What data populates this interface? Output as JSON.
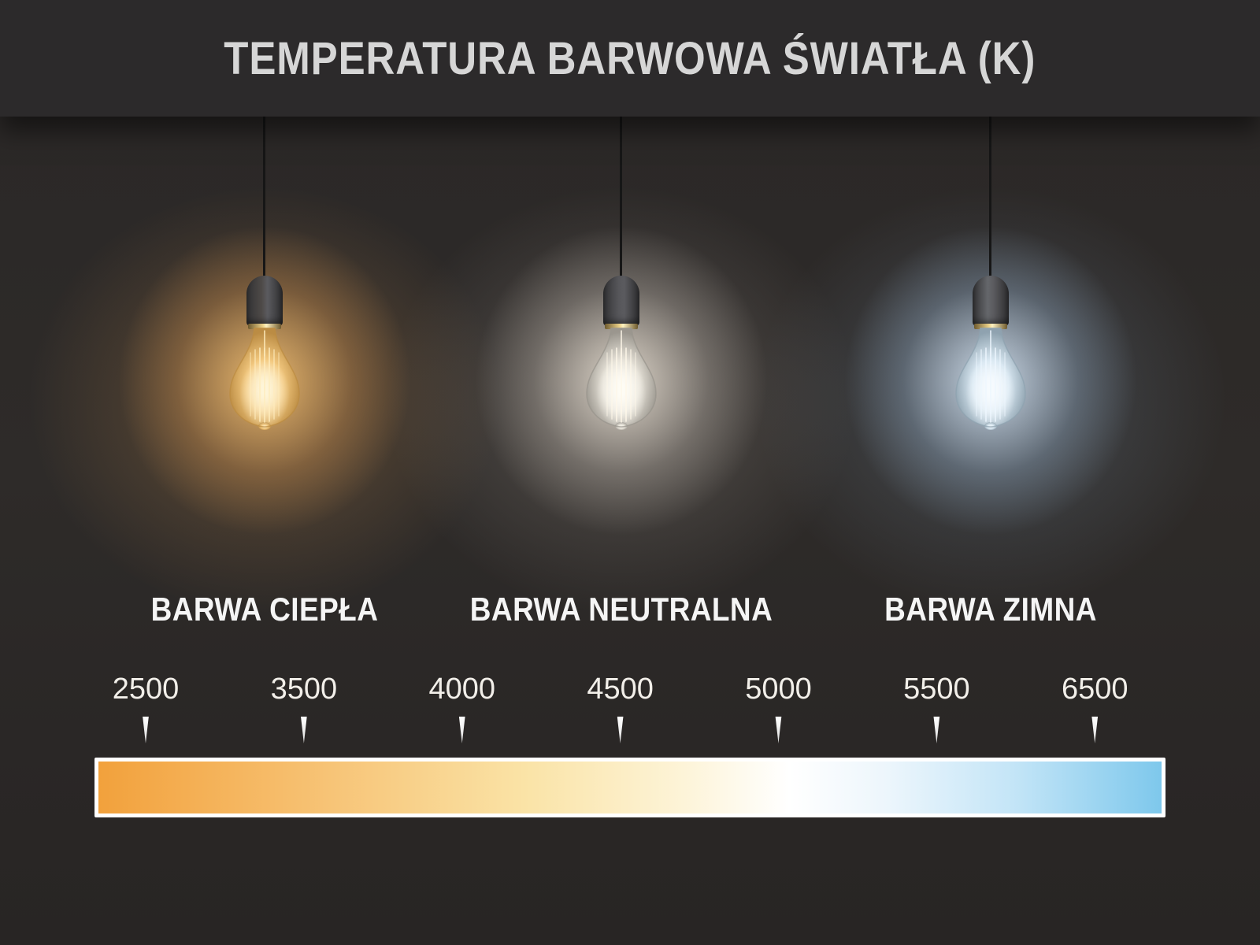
{
  "header": {
    "title": "TEMPERATURA BARWOWA ŚWIATŁA (K)"
  },
  "bulbs": [
    {
      "name": "warm",
      "label": "BARWA CIEPŁA",
      "colors": {
        "halo": "rgba(255,202,120,0.85)",
        "halo_mid": "rgba(212,150,82,0.35)",
        "glass_edge": "#bc8c42",
        "glass_mid": "#f6cc82",
        "core": "#fff7dc",
        "filament": "#ffedbe",
        "socket": "#4e4a48",
        "wall": "rgba(186,134,76,0.40)"
      }
    },
    {
      "name": "neutral",
      "label": "BARWA NEUTRALNA",
      "colors": {
        "halo": "rgba(255,246,232,0.80)",
        "halo_mid": "rgba(202,194,184,0.32)",
        "glass_edge": "#9a968e",
        "glass_mid": "#e9e5db",
        "core": "#fffdf6",
        "filament": "#fff8ea",
        "socket": "#56565a",
        "wall": "rgba(214,204,194,0.25)"
      }
    },
    {
      "name": "cold",
      "label": "BARWA ZIMNA",
      "colors": {
        "halo": "rgba(225,240,255,0.85)",
        "halo_mid": "rgba(158,184,210,0.32)",
        "glass_edge": "#8fa3b0",
        "glass_mid": "#dcebf5",
        "core": "#f8fcff",
        "filament": "#eef7ff",
        "socket": "#65676b",
        "wall": "rgba(148,178,208,0.26)"
      }
    }
  ],
  "scale": {
    "unit": "K",
    "ticks": [
      "2500",
      "3500",
      "4000",
      "4500",
      "5000",
      "5500",
      "6500"
    ],
    "gradient": [
      {
        "pos": 0,
        "color": "#F2A13C"
      },
      {
        "pos": 22,
        "color": "#F7C477"
      },
      {
        "pos": 40,
        "color": "#FAE3A6"
      },
      {
        "pos": 55,
        "color": "#FDF4D8"
      },
      {
        "pos": 65,
        "color": "#FFFFFF"
      },
      {
        "pos": 74,
        "color": "#EDF6FC"
      },
      {
        "pos": 86,
        "color": "#C4E5F7"
      },
      {
        "pos": 100,
        "color": "#7EC8EC"
      }
    ]
  },
  "colors": {
    "header_bg": "#2c2a2b",
    "wall_base": "#2a2726",
    "title_text": "#d6d6d6",
    "label_text": "#f5f5f5",
    "tick_text": "#f2efe9",
    "bar_border": "#ffffff"
  }
}
